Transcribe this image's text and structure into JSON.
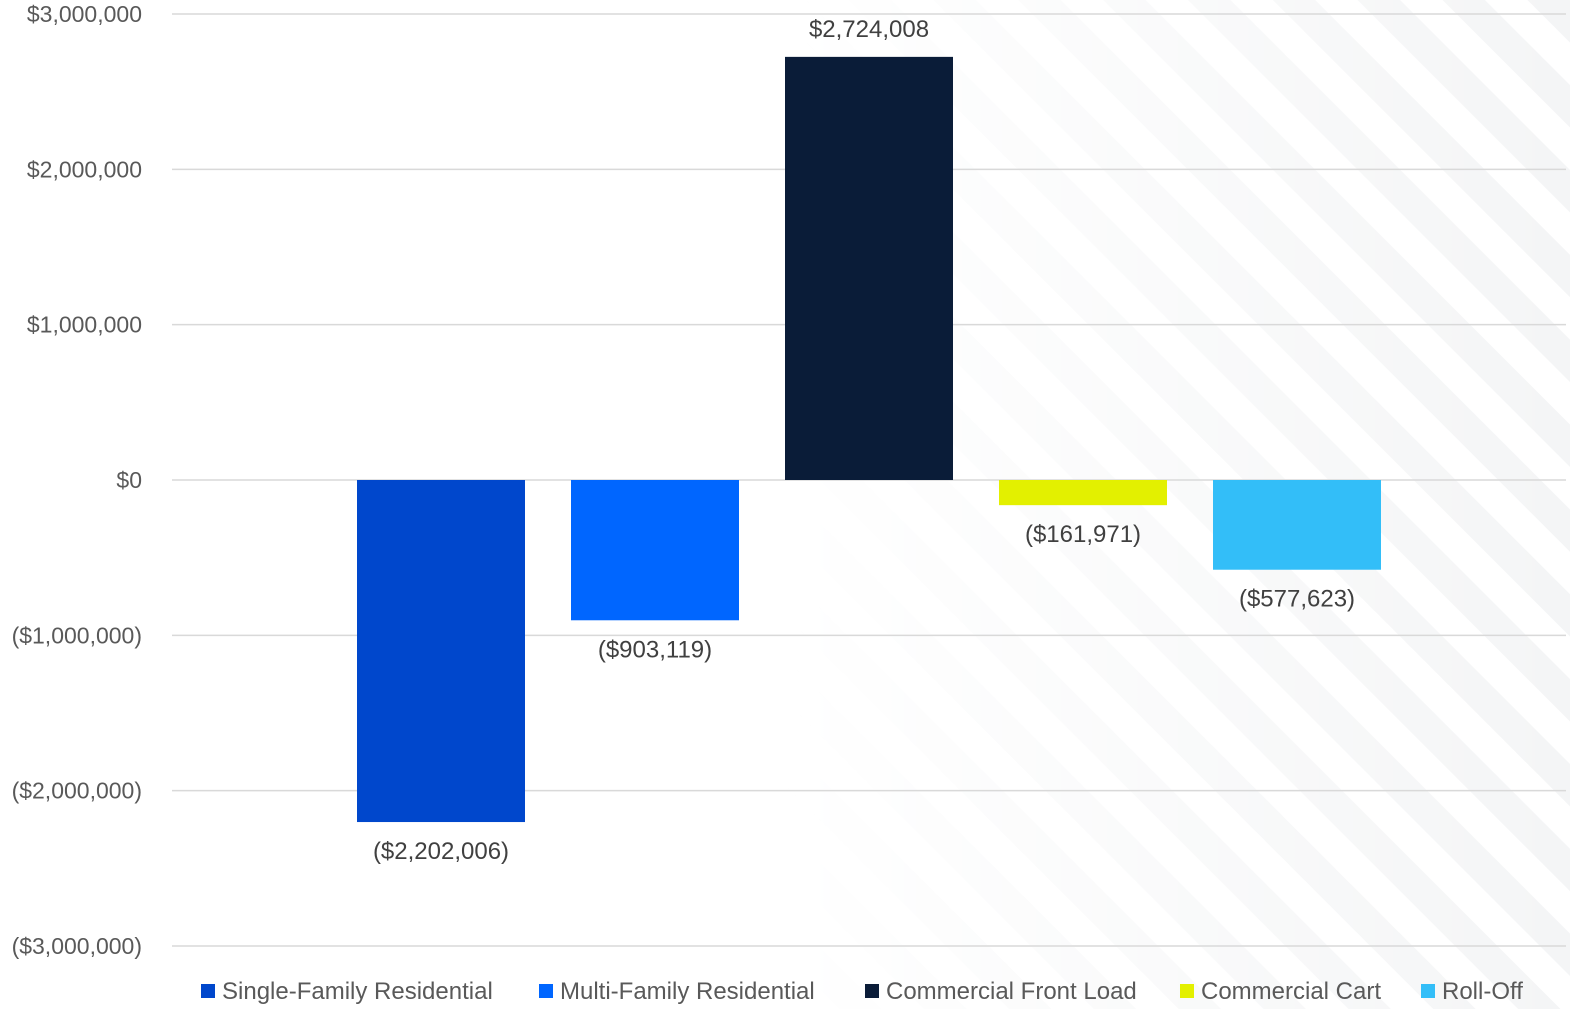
{
  "chart_data": {
    "type": "bar",
    "title": "",
    "xlabel": "",
    "ylabel": "",
    "ylim": [
      -3000000,
      3000000
    ],
    "y_ticks": [
      3000000,
      2000000,
      1000000,
      0,
      -1000000,
      -2000000,
      -3000000
    ],
    "y_tick_labels": [
      "$3,000,000",
      "$2,000,000",
      "$1,000,000",
      "$0",
      "($1,000,000)",
      "($2,000,000)",
      "($3,000,000)"
    ],
    "grid": true,
    "legend_position": "bottom",
    "series": [
      {
        "name": "Single-Family Residential",
        "value": -2202006,
        "label": "($2,202,006)",
        "color": "#0047cc"
      },
      {
        "name": "Multi-Family Residential",
        "value": -903119,
        "label": "($903,119)",
        "color": "#0066ff"
      },
      {
        "name": "Commercial Front Load",
        "value": 2724008,
        "label": "$2,724,008",
        "color": "#0a1c38"
      },
      {
        "name": "Commercial Cart",
        "value": -161971,
        "label": "($161,971)",
        "color": "#e3f000"
      },
      {
        "name": "Roll-Off",
        "value": -577623,
        "label": "($577,623)",
        "color": "#33bef8"
      }
    ]
  }
}
